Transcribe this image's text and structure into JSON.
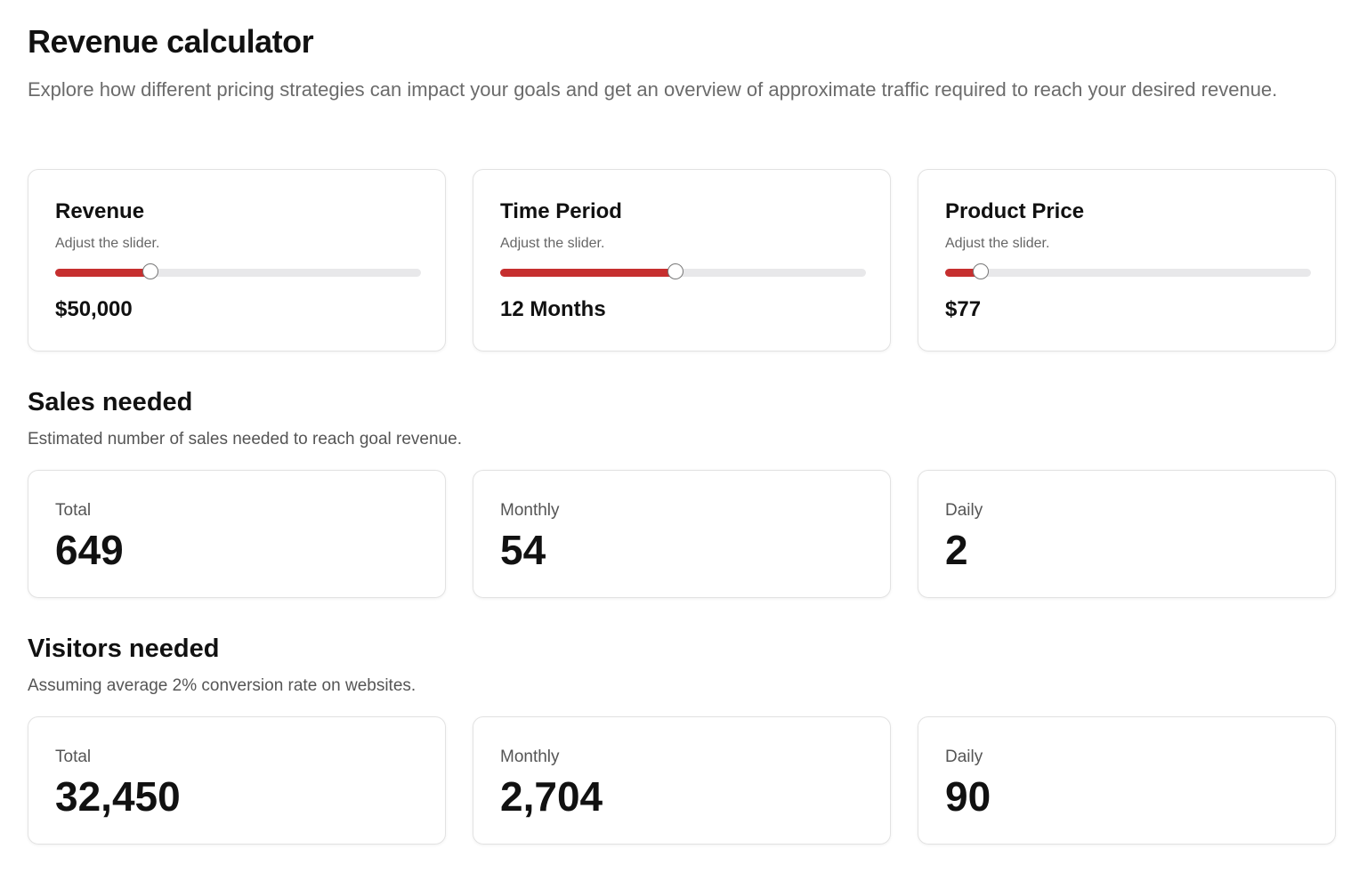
{
  "header": {
    "title": "Revenue calculator",
    "description": "Explore how different pricing strategies can impact your goals and get an overview of approximate traffic required to reach your desired revenue."
  },
  "inputs": [
    {
      "label": "Revenue",
      "hint": "Adjust the slider.",
      "value": "$50,000"
    },
    {
      "label": "Time Period",
      "hint": "Adjust the slider.",
      "value": "12 Months"
    },
    {
      "label": "Product Price",
      "hint": "Adjust the slider.",
      "value": "$77"
    }
  ],
  "sales": {
    "title": "Sales needed",
    "description": "Estimated number of sales needed to reach goal revenue.",
    "stats": [
      {
        "label": "Total",
        "value": "649"
      },
      {
        "label": "Monthly",
        "value": "54"
      },
      {
        "label": "Daily",
        "value": "2"
      }
    ]
  },
  "visitors": {
    "title": "Visitors needed",
    "description": "Assuming average 2% conversion rate on websites.",
    "stats": [
      {
        "label": "Total",
        "value": "32,450"
      },
      {
        "label": "Monthly",
        "value": "2,704"
      },
      {
        "label": "Daily",
        "value": "90"
      }
    ]
  }
}
